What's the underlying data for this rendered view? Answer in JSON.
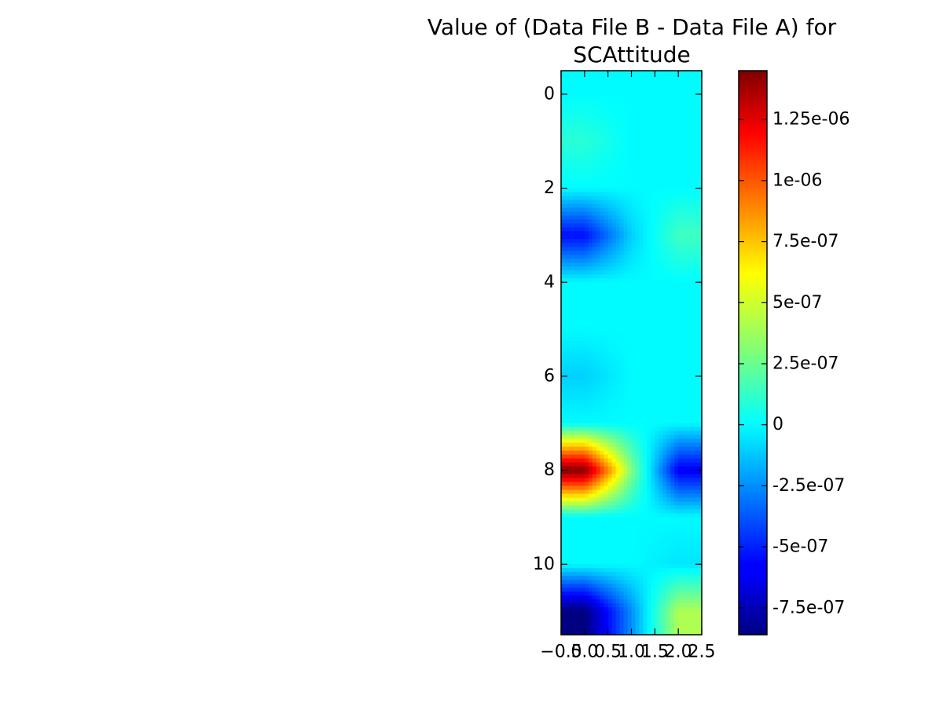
{
  "chart_data": {
    "type": "heatmap",
    "title_lines": [
      "Value of (Data File B - Data File A) for",
      "SCAttitude"
    ],
    "xlabel": "",
    "ylabel": "",
    "colormap": "jet",
    "interpolation": "bilinear",
    "x_ticks": [
      "−0.5",
      "0.0",
      "0.5",
      "1.0",
      "1.5",
      "2.0",
      "2.5"
    ],
    "y_ticks": [
      "0",
      "2",
      "4",
      "6",
      "8",
      "10"
    ],
    "xlim": [
      -0.5,
      2.5
    ],
    "ylim": [
      11.5,
      -0.5
    ],
    "colorbar": {
      "vmin": -8.6e-07,
      "vmax": 1.45e-06,
      "tick_values": [
        1.25e-06,
        1e-06,
        7.5e-07,
        5e-07,
        2.5e-07,
        0,
        -2.5e-07,
        -5e-07,
        -7.5e-07
      ],
      "tick_labels": [
        "1.25e-06",
        "1e-06",
        "7.5e-07",
        "5e-07",
        "2.5e-07",
        "0",
        "-2.5e-07",
        "-5e-07",
        "-7.5e-07"
      ]
    },
    "columns": [
      0,
      1,
      2
    ],
    "rows": [
      0,
      1,
      2,
      3,
      4,
      5,
      6,
      7,
      8,
      9,
      10,
      11
    ],
    "values": [
      [
        0.0,
        0.0,
        0.0
      ],
      [
        1e-07,
        0.0,
        0.0
      ],
      [
        0.0,
        0.0,
        0.0
      ],
      [
        -5.5e-07,
        -1e-07,
        1.5e-07
      ],
      [
        0.0,
        0.0,
        0.0
      ],
      [
        0.0,
        0.0,
        0.0
      ],
      [
        -1e-07,
        0.0,
        0.0
      ],
      [
        0.0,
        0.0,
        0.0
      ],
      [
        1.45e-06,
        3e-07,
        -6e-07
      ],
      [
        0.0,
        0.0,
        0.0
      ],
      [
        0.0,
        0.0,
        -5e-08
      ],
      [
        -8.6e-07,
        -2.5e-07,
        4e-07
      ]
    ]
  }
}
